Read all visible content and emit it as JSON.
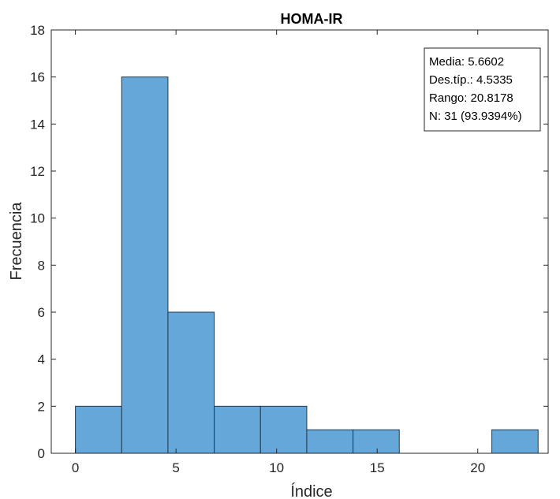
{
  "chart_data": {
    "type": "bar",
    "title": "HOMA-IR",
    "xlabel": "Índice",
    "ylabel": "Frecuencia",
    "xlim": [
      -1.2,
      23.5
    ],
    "ylim": [
      0,
      18
    ],
    "xticks": [
      0,
      5,
      10,
      15,
      20
    ],
    "yticks": [
      0,
      2,
      4,
      6,
      8,
      10,
      12,
      14,
      16,
      18
    ],
    "bin_edges": [
      0,
      2.3,
      4.6,
      6.9,
      9.2,
      11.5,
      13.8,
      16.1,
      18.4,
      20.7,
      23.0
    ],
    "values": [
      2,
      16,
      6,
      2,
      2,
      1,
      1,
      0,
      0,
      1
    ],
    "bar_color": "#64a7d8",
    "bar_edge_color": "#1f3a52",
    "grid": false,
    "legend": "none",
    "stats_box": {
      "position": "top-right",
      "lines": [
        "Media: 5.6602",
        "Des.típ.: 4.5335",
        "Rango: 20.8178",
        "N: 31 (93.9394%)"
      ]
    }
  }
}
